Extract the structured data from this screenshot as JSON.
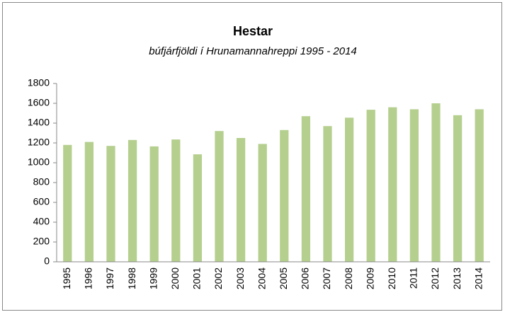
{
  "chart_data": {
    "type": "bar",
    "title": "Hestar",
    "subtitle": "búfjárfjöldi í Hrunamannahreppi 1995 - 2014",
    "categories": [
      "1995",
      "1996",
      "1997",
      "1998",
      "1999",
      "2000",
      "2001",
      "2002",
      "2003",
      "2004",
      "2005",
      "2006",
      "2007",
      "2008",
      "2009",
      "2010",
      "2011",
      "2012",
      "2013",
      "2014"
    ],
    "values": [
      1180,
      1210,
      1170,
      1230,
      1165,
      1235,
      1085,
      1320,
      1250,
      1190,
      1330,
      1470,
      1370,
      1455,
      1535,
      1560,
      1540,
      1600,
      1480,
      1540
    ],
    "color": "#b5cf8e",
    "ylim": [
      0,
      1800
    ],
    "yticks": [
      0,
      200,
      400,
      600,
      800,
      1000,
      1200,
      1400,
      1600,
      1800
    ],
    "grid": false
  }
}
